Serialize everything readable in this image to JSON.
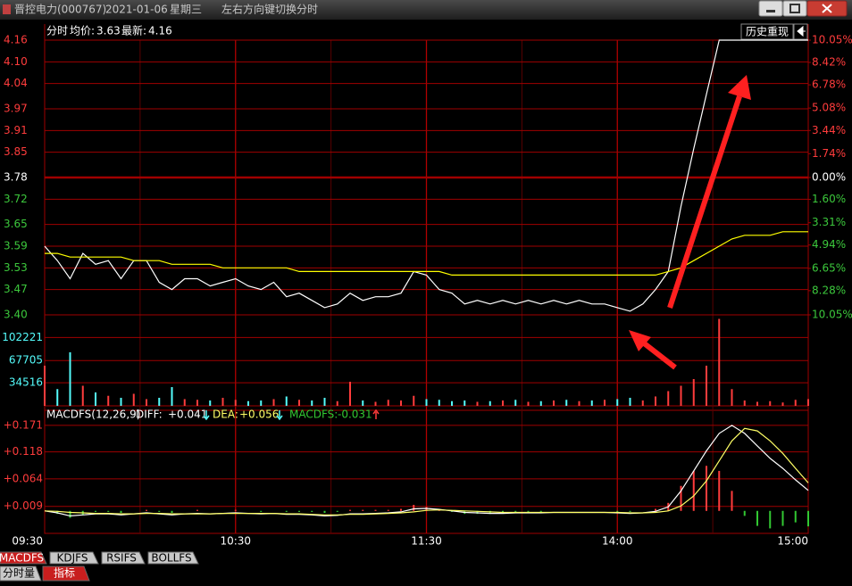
{
  "window": {
    "stock": "晋控电力(000767)",
    "date": "2021-01-06",
    "weekday": "星期三",
    "hint": "左右方向键切换分时"
  },
  "header": {
    "mode": "分时",
    "avg_label": "均价:",
    "avg": 3.63,
    "last_label": "最新:",
    "last": 4.16,
    "replay": "历史重现"
  },
  "chart_data": [
    {
      "type": "line",
      "x": [
        "09:30",
        "09:34",
        "09:38",
        "09:42",
        "09:46",
        "09:50",
        "09:54",
        "09:58",
        "10:02",
        "10:06",
        "10:10",
        "10:14",
        "10:18",
        "10:22",
        "10:26",
        "10:30",
        "10:34",
        "10:38",
        "10:42",
        "10:46",
        "10:50",
        "10:54",
        "10:58",
        "11:02",
        "11:06",
        "11:10",
        "11:14",
        "11:18",
        "11:22",
        "11:26",
        "11:30",
        "13:04",
        "13:08",
        "13:12",
        "13:16",
        "13:20",
        "13:24",
        "13:28",
        "13:32",
        "13:36",
        "13:40",
        "13:44",
        "13:48",
        "13:52",
        "13:56",
        "14:00",
        "14:04",
        "14:08",
        "14:12",
        "14:16",
        "14:20",
        "14:24",
        "14:28",
        "14:32",
        "14:36",
        "14:40",
        "14:44",
        "14:48",
        "14:52",
        "14:56",
        "15:00"
      ],
      "series": [
        {
          "color": "#ffffff",
          "values": [
            3.59,
            3.55,
            3.5,
            3.57,
            3.54,
            3.55,
            3.5,
            3.55,
            3.55,
            3.49,
            3.47,
            3.5,
            3.5,
            3.48,
            3.49,
            3.5,
            3.48,
            3.47,
            3.49,
            3.45,
            3.46,
            3.44,
            3.42,
            3.43,
            3.46,
            3.44,
            3.45,
            3.45,
            3.46,
            3.52,
            3.51,
            3.47,
            3.46,
            3.43,
            3.44,
            3.43,
            3.44,
            3.43,
            3.44,
            3.43,
            3.44,
            3.43,
            3.44,
            3.43,
            3.43,
            3.42,
            3.41,
            3.43,
            3.47,
            3.52,
            3.7,
            3.86,
            4.01,
            4.16,
            4.16,
            4.16,
            4.16,
            4.16,
            4.16,
            4.16,
            4.16
          ]
        },
        {
          "color": "#ffff00",
          "values": [
            3.57,
            3.57,
            3.56,
            3.56,
            3.56,
            3.56,
            3.56,
            3.55,
            3.55,
            3.55,
            3.54,
            3.54,
            3.54,
            3.54,
            3.53,
            3.53,
            3.53,
            3.53,
            3.53,
            3.53,
            3.52,
            3.52,
            3.52,
            3.52,
            3.52,
            3.52,
            3.52,
            3.52,
            3.52,
            3.52,
            3.52,
            3.52,
            3.51,
            3.51,
            3.51,
            3.51,
            3.51,
            3.51,
            3.51,
            3.51,
            3.51,
            3.51,
            3.51,
            3.51,
            3.51,
            3.51,
            3.51,
            3.51,
            3.51,
            3.52,
            3.53,
            3.55,
            3.57,
            3.59,
            3.61,
            3.62,
            3.62,
            3.62,
            3.63,
            3.63,
            3.63
          ]
        }
      ],
      "ylim": [
        3.4,
        4.16
      ],
      "yticks": [
        4.16,
        {
          "value": 4.1,
          "label": "4.10"
        },
        4.04,
        3.97,
        3.91,
        3.85,
        3.78,
        3.72,
        3.65,
        3.59,
        3.53,
        3.47,
        {
          "value": 3.4,
          "label": "3.40"
        }
      ],
      "y2lim": [
        -10.05,
        10.05
      ],
      "y2ticks": [
        {
          "value": 10.05,
          "label": "10.05%"
        },
        {
          "value": 8.42,
          "label": "8.42%"
        },
        {
          "value": 6.78,
          "label": "6.78%"
        },
        {
          "value": 5.08,
          "label": "5.08%"
        },
        {
          "value": 3.44,
          "label": "3.44%"
        },
        {
          "value": 1.74,
          "label": "1.74%"
        },
        {
          "value": 0,
          "label": "0.00%"
        },
        {
          "value": -1.6,
          "label": "1.60%"
        },
        {
          "value": -3.31,
          "label": "3.31%"
        },
        {
          "value": -4.94,
          "label": "4.94%"
        },
        {
          "value": -6.65,
          "label": "6.65%"
        },
        {
          "value": -8.28,
          "label": "8.28%"
        },
        {
          "value": -10.05,
          "label": "10.05%"
        }
      ]
    },
    {
      "type": "bar",
      "values": [
        60000,
        25000,
        80000,
        30000,
        20000,
        15000,
        12000,
        18000,
        10000,
        12000,
        28000,
        10000,
        9000,
        8000,
        12000,
        9000,
        7000,
        8000,
        10000,
        14000,
        9000,
        8000,
        12000,
        7000,
        36000,
        8000,
        6000,
        9000,
        8000,
        15000,
        10000,
        9000,
        7000,
        8000,
        6000,
        7000,
        8000,
        9000,
        6000,
        7000,
        8000,
        9000,
        7000,
        8000,
        9000,
        10000,
        12000,
        8000,
        14000,
        22000,
        30000,
        40000,
        60000,
        130000,
        25000,
        8000,
        6000,
        7000,
        5000,
        9000,
        10000
      ],
      "up_color": "#ff3c3c",
      "down_color": "#54fcfc",
      "ylim": [
        0,
        136000
      ],
      "yticks": [
        34516,
        67705,
        102221
      ]
    },
    {
      "type": "line",
      "title": "MACDFS(12,26,9)",
      "series": [
        {
          "name": "DIFF:",
          "color": "#ffffff",
          "current": {
            "value": 0.041,
            "label": "+0.041"
          },
          "values": [
            0,
            -0.004,
            -0.01,
            -0.008,
            -0.006,
            -0.006,
            -0.008,
            -0.006,
            -0.004,
            -0.006,
            -0.008,
            -0.006,
            -0.005,
            -0.006,
            -0.005,
            -0.004,
            -0.005,
            -0.006,
            -0.005,
            -0.007,
            -0.007,
            -0.008,
            -0.01,
            -0.009,
            -0.006,
            -0.006,
            -0.005,
            -0.004,
            -0.002,
            0.004,
            0.005,
            0.003,
            0,
            -0.003,
            -0.004,
            -0.005,
            -0.005,
            -0.004,
            -0.004,
            -0.004,
            -0.003,
            -0.003,
            -0.003,
            -0.003,
            -0.003,
            -0.004,
            -0.005,
            -0.004,
            -0.001,
            0.008,
            0.04,
            0.08,
            0.12,
            0.155,
            0.171,
            0.155,
            0.13,
            0.105,
            0.085,
            0.062,
            0.041
          ]
        },
        {
          "name": "DEA:",
          "color": "#ffff66",
          "current": {
            "value": 0.056,
            "label": "+0.056"
          },
          "values": [
            0,
            -0.001,
            -0.003,
            -0.004,
            -0.005,
            -0.005,
            -0.006,
            -0.006,
            -0.005,
            -0.005,
            -0.006,
            -0.006,
            -0.006,
            -0.006,
            -0.005,
            -0.005,
            -0.005,
            -0.005,
            -0.005,
            -0.006,
            -0.006,
            -0.007,
            -0.008,
            -0.008,
            -0.007,
            -0.007,
            -0.006,
            -0.005,
            -0.004,
            -0.002,
            0.001,
            0.002,
            0.001,
            0,
            -0.001,
            -0.002,
            -0.003,
            -0.003,
            -0.003,
            -0.003,
            -0.003,
            -0.003,
            -0.003,
            -0.003,
            -0.003,
            -0.003,
            -0.004,
            -0.004,
            -0.003,
            0,
            0.01,
            0.03,
            0.06,
            0.1,
            0.14,
            0.165,
            0.16,
            0.14,
            0.115,
            0.085,
            0.056
          ]
        },
        {
          "name": "MACDFS:",
          "type": "bar",
          "color": "#32c832",
          "up_color": "#ff3c3c",
          "down_color": "#32c832",
          "current": -0.031,
          "values": [
            0,
            -0.006,
            -0.014,
            -0.008,
            -0.002,
            -0.002,
            -0.004,
            0,
            0.002,
            -0.002,
            -0.004,
            0,
            0.002,
            0,
            0,
            0.002,
            0,
            -0.002,
            0,
            -0.002,
            -0.002,
            -0.002,
            -0.004,
            -0.002,
            0.002,
            0.002,
            0.002,
            0.002,
            0.004,
            0.012,
            0.008,
            0.002,
            -0.002,
            -0.006,
            -0.006,
            -0.006,
            -0.004,
            -0.002,
            -0.002,
            -0.002,
            0,
            0,
            0,
            0,
            0,
            -0.002,
            -0.002,
            0,
            0.004,
            0.016,
            0.05,
            0.08,
            0.09,
            0.08,
            0.04,
            -0.01,
            -0.03,
            -0.035,
            -0.03,
            -0.023,
            -0.031
          ]
        }
      ],
      "ylim": [
        -0.045,
        0.178
      ],
      "yticks": [
        {
          "value": 0.171,
          "label": "+0.171"
        },
        {
          "value": 0.118,
          "label": "+0.118"
        },
        {
          "value": 0.064,
          "label": "+0.064"
        },
        {
          "value": 0.009,
          "label": "+0.009"
        }
      ],
      "xlim": [
        "09:30",
        "15:00"
      ],
      "xticks": [
        "09:30",
        "10:30",
        "11:30",
        "14:00",
        "15:00"
      ]
    }
  ],
  "tabs": {
    "indicators": [
      "MACDFS",
      "KDJFS",
      "RSIFS",
      "BOLLFS"
    ],
    "views": [
      "分时量",
      "指标"
    ]
  }
}
